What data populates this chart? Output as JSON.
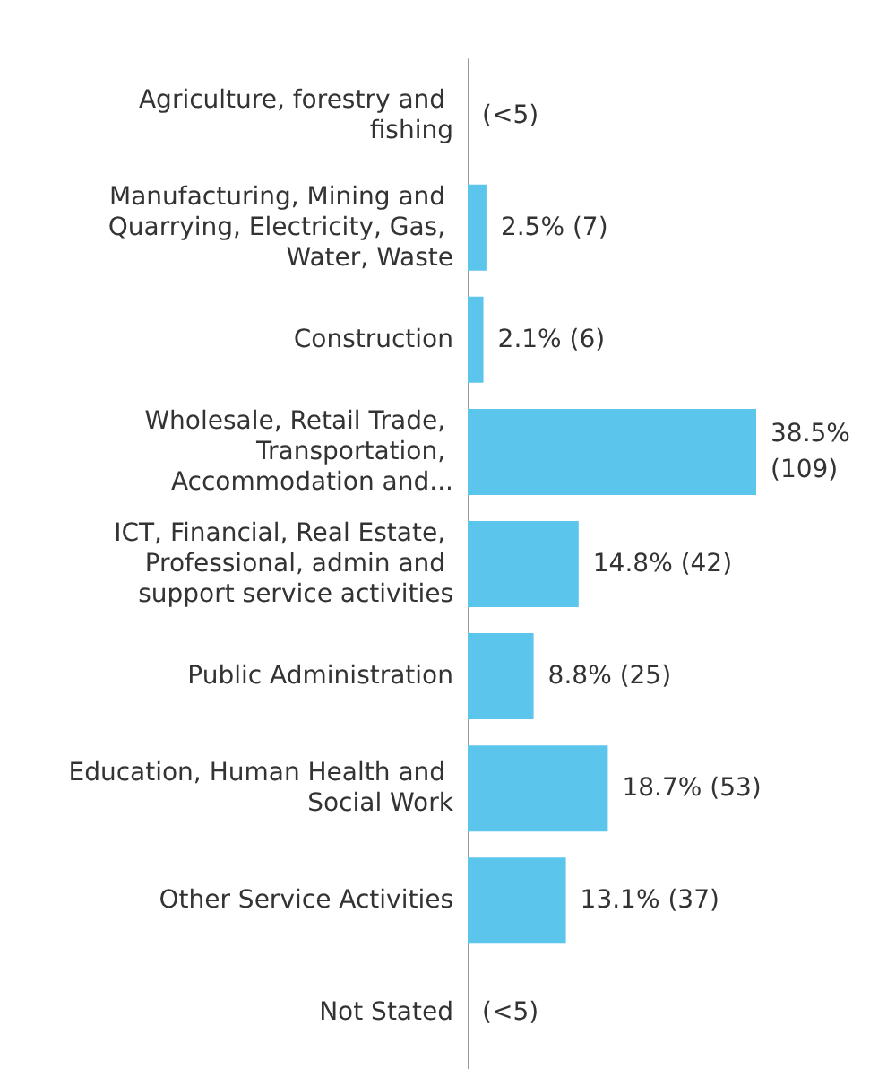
{
  "chart_data": {
    "type": "bar",
    "orientation": "horizontal",
    "categories": [
      "Agriculture, forestry and fishing",
      "Manufacturing, Mining and Quarrying, Electricity, Gas, Water, Waste",
      "Construction",
      "Wholesale, Retail Trade, Transportation, Accommodation and...",
      "ICT, Financial, Real Estate, Professional, admin and support service activities",
      "Public Administration",
      "Education, Human Health and Social Work",
      "Other Service Activities",
      "Not Stated"
    ],
    "values": [
      null,
      2.5,
      2.1,
      38.5,
      14.8,
      8.8,
      18.7,
      13.1,
      null
    ],
    "value_labels": [
      "(<5)",
      "2.5% (7)",
      "2.1% (6)",
      "38.5% (109)",
      "14.8% (42)",
      "8.8% (25)",
      "18.7% (53)",
      "13.1% (37)",
      "(<5)"
    ],
    "color": "#5bc5ec"
  }
}
